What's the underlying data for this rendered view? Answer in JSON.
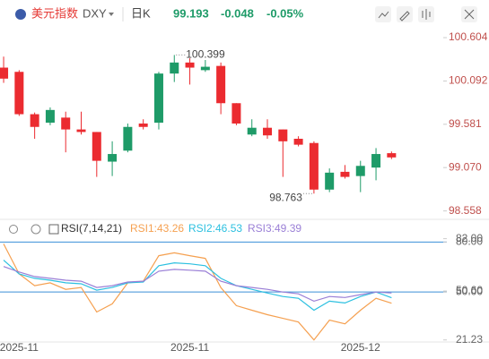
{
  "header": {
    "name": "美元指数",
    "symbol": "DXY",
    "period": "日K",
    "price": "99.193",
    "change": "-0.048",
    "change_pct": "-0.05%"
  },
  "rsi_header": {
    "title": "RSI(7,14,21)",
    "rsi1": "RSI1:43.26",
    "rsi2": "RSI2:46.53",
    "rsi3": "RSI3:49.39"
  },
  "chart_data": [
    {
      "type": "candlestick",
      "up_color": "#1e9b68",
      "down_color": "#eb2b30",
      "categories": [
        null,
        "2025-11",
        null,
        null,
        null,
        null,
        null,
        null,
        null,
        null,
        null,
        null,
        "2025-11",
        null,
        null,
        null,
        null,
        null,
        null,
        null,
        null,
        null,
        null,
        "2025-12",
        null,
        null
      ],
      "open": [
        100.25,
        100.2,
        99.7,
        99.6,
        99.66,
        99.52,
        99.49,
        99.14,
        99.27,
        99.59,
        99.6,
        100.18,
        100.31,
        100.22,
        100.27,
        99.83,
        99.46,
        99.54,
        99.52,
        99.41,
        99.36,
        98.81,
        99.02,
        98.97,
        99.07,
        99.24
      ],
      "high": [
        100.38,
        100.22,
        99.72,
        99.78,
        99.73,
        99.73,
        99.49,
        99.38,
        99.59,
        99.64,
        100.2,
        100.399,
        100.36,
        100.34,
        100.31,
        99.83,
        99.64,
        99.64,
        99.52,
        99.44,
        99.38,
        99.06,
        99.1,
        99.15,
        99.3,
        99.26
      ],
      "low": [
        100.07,
        99.68,
        99.41,
        99.57,
        99.25,
        99.46,
        98.96,
        98.97,
        99.25,
        99.52,
        99.52,
        100.08,
        100.05,
        100.2,
        99.7,
        99.57,
        99.44,
        99.41,
        98.96,
        99.32,
        98.763,
        98.78,
        98.94,
        98.78,
        98.92,
        99.17
      ],
      "close": [
        100.12,
        99.7,
        99.55,
        99.75,
        99.52,
        99.49,
        99.15,
        99.23,
        99.55,
        99.55,
        100.18,
        100.31,
        100.25,
        100.26,
        99.83,
        99.59,
        99.54,
        99.45,
        99.38,
        99.34,
        98.81,
        99.01,
        98.96,
        99.09,
        99.23,
        99.19
      ],
      "annotations": [
        {
          "index": 11,
          "at": "high",
          "value": 100.399,
          "label": "100.399"
        },
        {
          "index": 20,
          "at": "low",
          "value": 98.763,
          "label": "98.763"
        }
      ],
      "ylim": [
        98.48,
        100.71
      ],
      "yticks": [
        100.604,
        100.092,
        99.581,
        {
          "value": 99.07,
          "label": "99.070"
        },
        98.558
      ]
    },
    {
      "type": "line",
      "series": [
        {
          "name": "RSI1",
          "color": "#f5a050",
          "values": [
            78.9,
            60.9,
            53.8,
            55.5,
            51.6,
            52.7,
            38.0,
            42.9,
            55.5,
            56.5,
            71.8,
            73.5,
            71.8,
            70.2,
            52.7,
            41.8,
            39.1,
            36.4,
            34.2,
            32.0,
            21.23,
            33.1,
            30.9,
            39.1,
            46.2,
            43.26
          ]
        },
        {
          "name": "RSI2",
          "color": "#2cc0e0",
          "values": [
            69.1,
            60.9,
            58.2,
            57.1,
            55.5,
            54.9,
            51.1,
            52.7,
            55.5,
            56.0,
            65.8,
            67.5,
            66.9,
            65.8,
            58.2,
            53.8,
            51.6,
            49.4,
            47.3,
            46.2,
            39.1,
            44.5,
            43.4,
            47.3,
            50.0,
            46.53
          ]
        },
        {
          "name": "RSI3",
          "color": "#9a7fd6",
          "values": [
            65.3,
            62.0,
            59.3,
            58.2,
            57.1,
            56.5,
            52.7,
            53.8,
            56.0,
            56.5,
            62.5,
            63.6,
            63.1,
            62.5,
            56.5,
            53.8,
            52.7,
            51.6,
            50.0,
            48.9,
            44.5,
            47.3,
            46.7,
            48.4,
            50.0,
            49.39
          ]
        }
      ],
      "ylim": [
        20,
        92
      ],
      "yticks": [
        {
          "value": 80,
          "label": "80.00"
        },
        {
          "value": 82,
          "label": "82.00"
        },
        {
          "value": 50,
          "label": "50.00"
        },
        {
          "value": 50.6,
          "label": "50.60"
        },
        21.23
      ],
      "reference_lines": [
        80,
        50
      ],
      "reference_color": "#3a8fd8"
    }
  ]
}
